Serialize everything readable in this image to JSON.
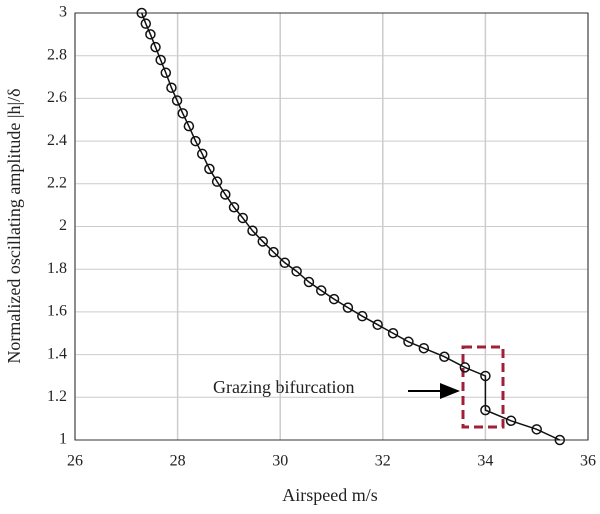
{
  "chart_data": {
    "type": "line",
    "xlabel": "Airspeed m/s",
    "ylabel": "Normalized oscillating amplitude |h|/δ",
    "annotation": "Grazing bifurcation",
    "x": [
      27.3,
      27.38,
      27.47,
      27.57,
      27.67,
      27.77,
      27.88,
      27.99,
      28.1,
      28.22,
      28.35,
      28.48,
      28.62,
      28.77,
      28.93,
      29.1,
      29.27,
      29.46,
      29.66,
      29.87,
      30.09,
      30.32,
      30.56,
      30.8,
      31.05,
      31.32,
      31.6,
      31.9,
      32.2,
      32.5,
      32.8,
      33.2,
      33.6,
      34.0,
      34.0,
      34.5,
      35.0,
      35.45
    ],
    "series": [
      {
        "color": "#111111",
        "values": [
          3.0,
          2.95,
          2.9,
          2.84,
          2.78,
          2.72,
          2.65,
          2.59,
          2.53,
          2.47,
          2.4,
          2.34,
          2.27,
          2.21,
          2.15,
          2.09,
          2.04,
          1.98,
          1.93,
          1.88,
          1.83,
          1.79,
          1.74,
          1.7,
          1.66,
          1.62,
          1.58,
          1.54,
          1.5,
          1.46,
          1.43,
          1.39,
          1.34,
          1.3,
          1.14,
          1.09,
          1.05,
          1.0
        ]
      }
    ],
    "xlim": [
      26,
      36
    ],
    "xticks": [
      26,
      28,
      30,
      32,
      34,
      36
    ],
    "ylim": [
      1,
      3
    ],
    "yticks": [
      1,
      1.2,
      1.4,
      1.6,
      1.8,
      2,
      2.2,
      2.4,
      2.6,
      2.8,
      3
    ],
    "grid": true
  }
}
